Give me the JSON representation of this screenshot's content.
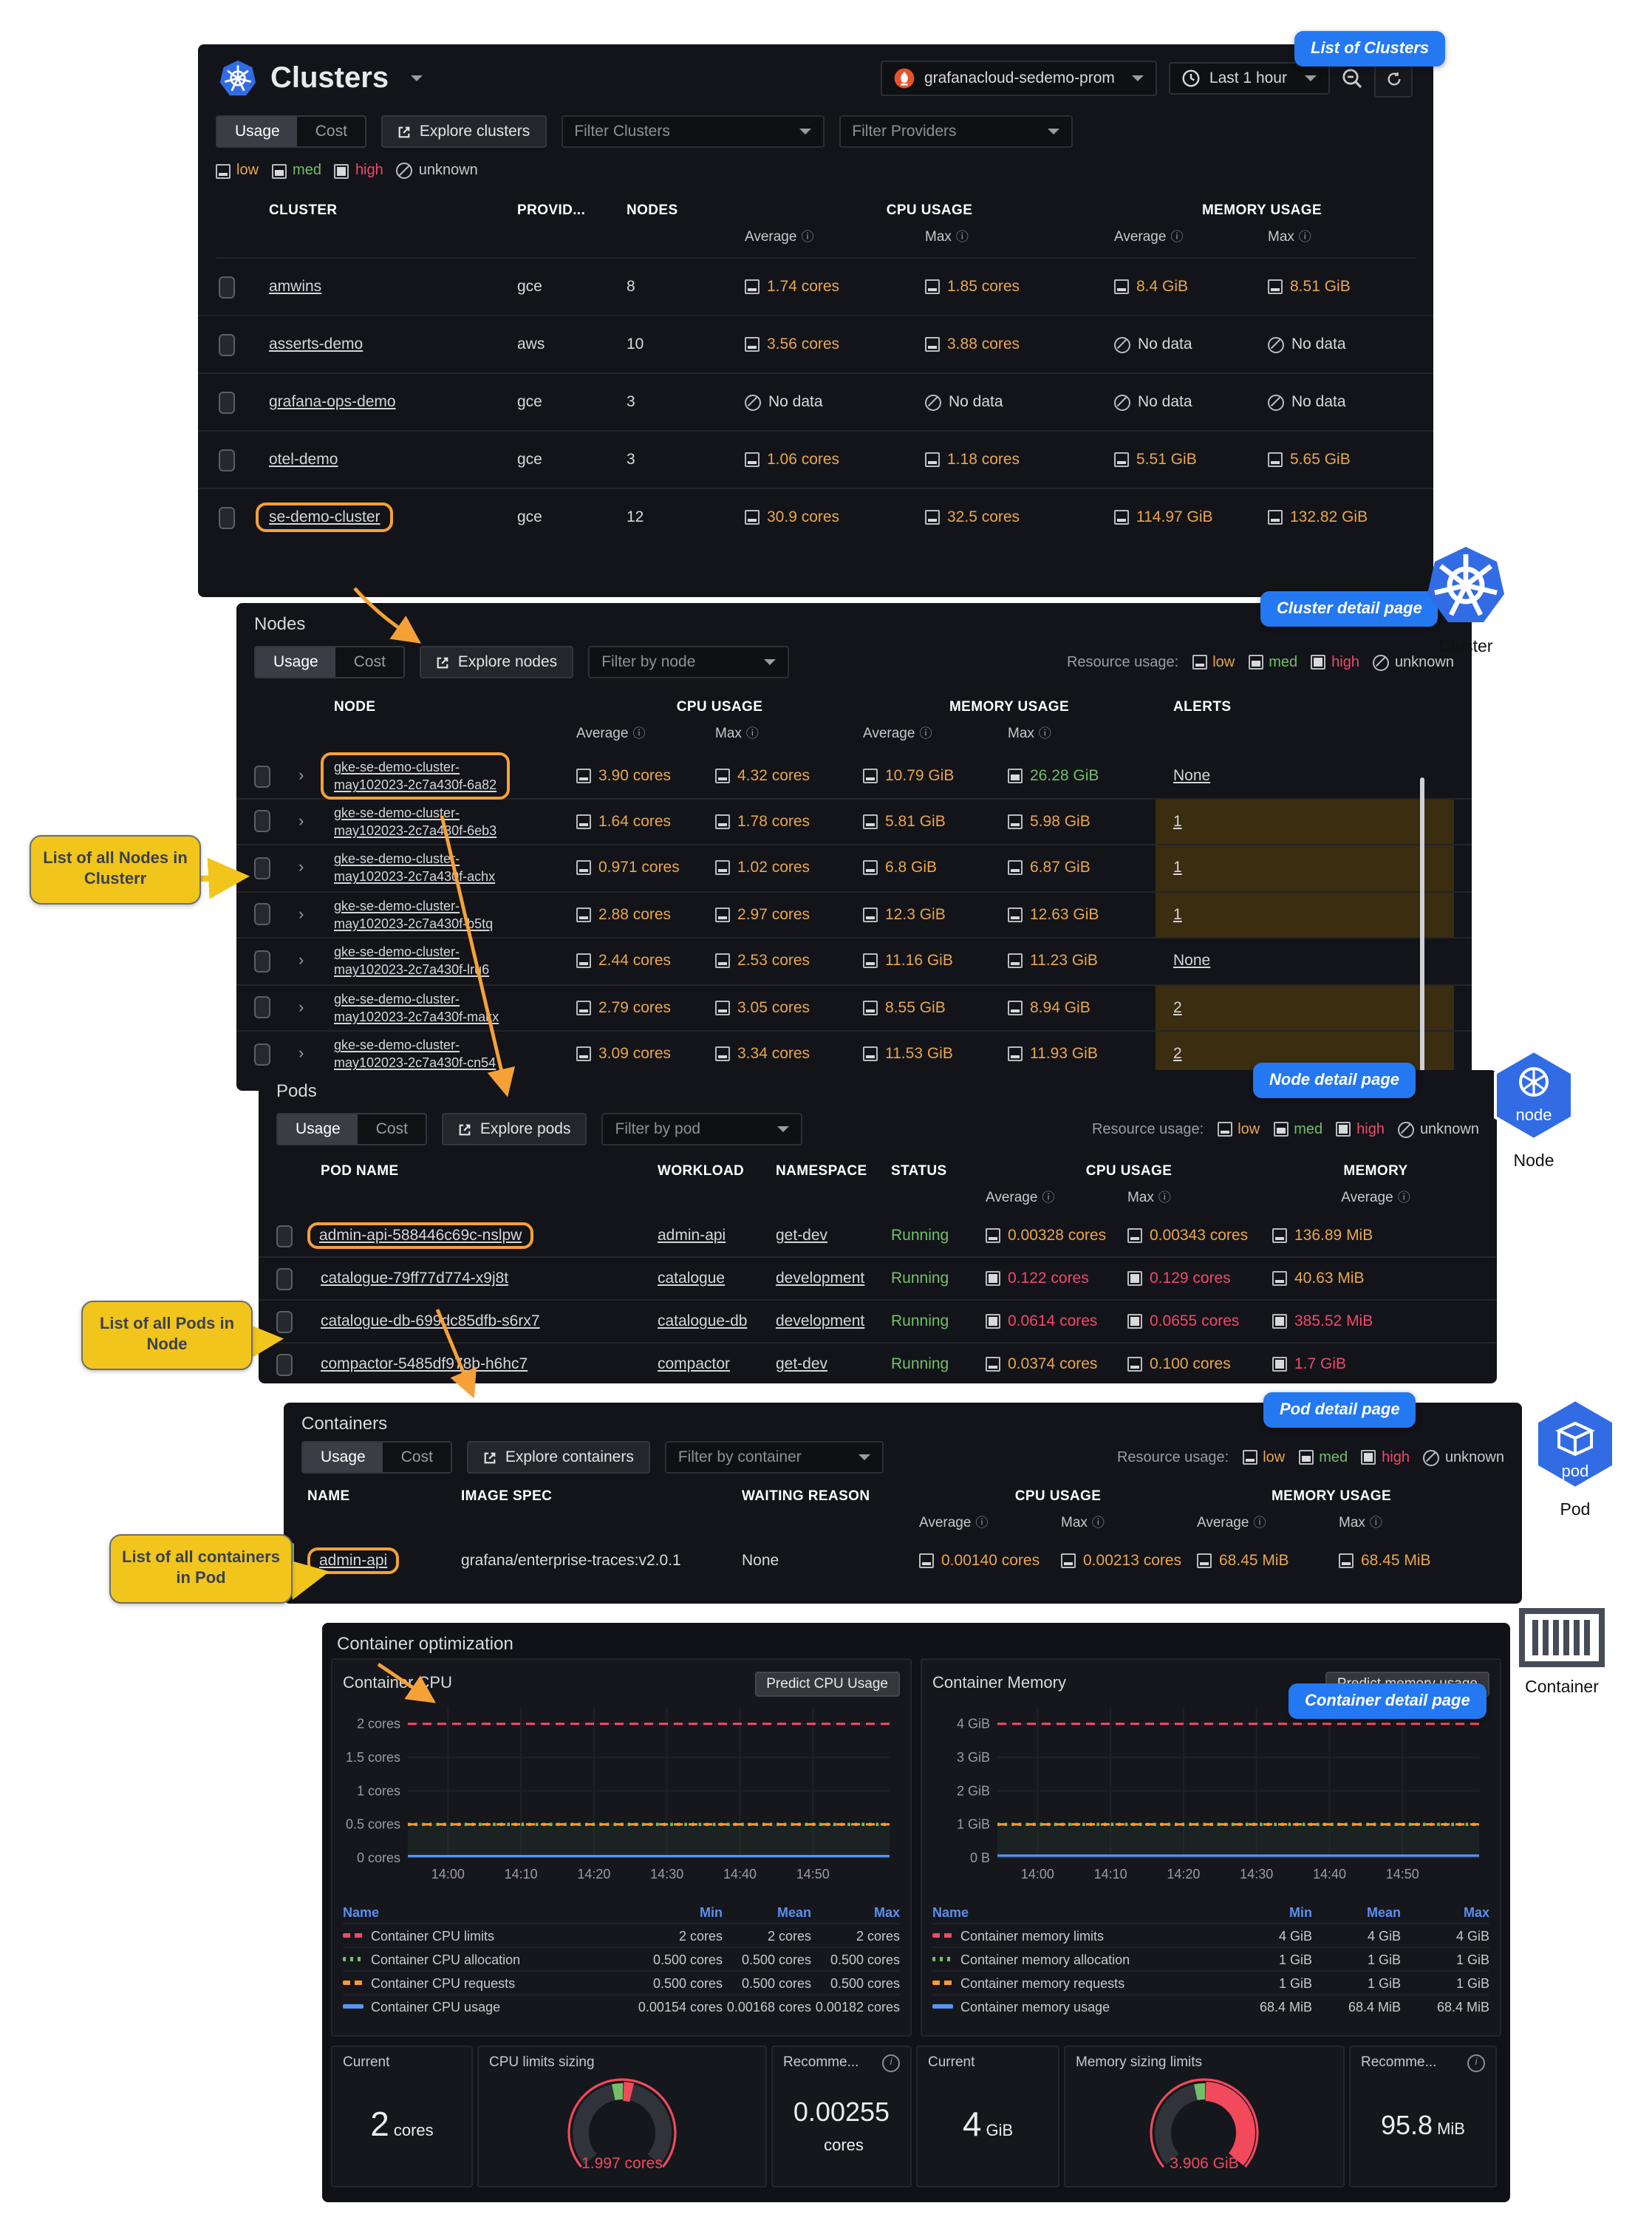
{
  "toolbar": {
    "usage": "Usage",
    "cost": "Cost"
  },
  "legend": {
    "resource_usage_label": "Resource usage:",
    "low": "low",
    "med": "med",
    "high": "high",
    "unknown": "unknown"
  },
  "header": {
    "title": "Clusters",
    "datasource": "grafanacloud-sedemo-prom",
    "time_range": "Last 1 hour"
  },
  "annotations": {
    "list_of_clusters": "List of Clusters",
    "cluster_detail": "Cluster detail page",
    "node_detail": "Node detail page",
    "pod_detail": "Pod detail page",
    "container_detail": "Container detail page",
    "nodes_box": "List of all Nodes in Clusterr",
    "pods_box": "List of all Pods in Node",
    "containers_box": "List of all containers in Pod",
    "cluster_icon_label": "Cluster",
    "node_icon_label": "Node",
    "pod_icon_label": "Pod",
    "container_icon_label": "Container",
    "node_icon_text": "node",
    "pod_icon_text": "pod"
  },
  "clusters_table": {
    "explore": "Explore clusters",
    "filter_clusters": "Filter Clusters",
    "filter_providers": "Filter Providers",
    "headers": {
      "cluster": "CLUSTER",
      "provider": "PROVID...",
      "nodes": "NODES",
      "cpu": "CPU USAGE",
      "memory": "MEMORY USAGE",
      "average": "Average",
      "max": "Max"
    },
    "rows": [
      {
        "name": "amwins",
        "provider": "gce",
        "nodes": "8",
        "highlight": false,
        "values": [
          {
            "t": "1.74 cores",
            "l": "low"
          },
          {
            "t": "1.85 cores",
            "l": "low"
          },
          {
            "t": "8.4 GiB",
            "l": "low"
          },
          {
            "t": "8.51 GiB",
            "l": "low"
          }
        ]
      },
      {
        "name": "asserts-demo",
        "provider": "aws",
        "nodes": "10",
        "highlight": false,
        "values": [
          {
            "t": "3.56 cores",
            "l": "low"
          },
          {
            "t": "3.88 cores",
            "l": "low"
          },
          {
            "t": "No data",
            "l": "unknown"
          },
          {
            "t": "No data",
            "l": "unknown"
          }
        ]
      },
      {
        "name": "grafana-ops-demo",
        "provider": "gce",
        "nodes": "3",
        "highlight": false,
        "values": [
          {
            "t": "No data",
            "l": "unknown"
          },
          {
            "t": "No data",
            "l": "unknown"
          },
          {
            "t": "No data",
            "l": "unknown"
          },
          {
            "t": "No data",
            "l": "unknown"
          }
        ]
      },
      {
        "name": "otel-demo",
        "provider": "gce",
        "nodes": "3",
        "highlight": false,
        "values": [
          {
            "t": "1.06 cores",
            "l": "low"
          },
          {
            "t": "1.18 cores",
            "l": "low"
          },
          {
            "t": "5.51 GiB",
            "l": "low"
          },
          {
            "t": "5.65 GiB",
            "l": "low"
          }
        ]
      },
      {
        "name": "se-demo-cluster",
        "provider": "gce",
        "nodes": "12",
        "highlight": true,
        "values": [
          {
            "t": "30.9 cores",
            "l": "low"
          },
          {
            "t": "32.5 cores",
            "l": "low"
          },
          {
            "t": "114.97 GiB",
            "l": "low"
          },
          {
            "t": "132.82 GiB",
            "l": "low"
          }
        ]
      }
    ]
  },
  "nodes_table": {
    "title": "Nodes",
    "explore": "Explore nodes",
    "filter": "Filter by node",
    "headers": {
      "node": "NODE",
      "cpu": "CPU USAGE",
      "memory": "MEMORY USAGE",
      "alerts": "ALERTS",
      "average": "Average",
      "max": "Max"
    },
    "rows": [
      {
        "line1": "gke-se-demo-cluster-",
        "line2": "may102023-2c7a430f-6a82",
        "highlight": true,
        "alerts": "None",
        "alert_bg": false,
        "values": [
          {
            "t": "3.90 cores",
            "l": "low"
          },
          {
            "t": "4.32 cores",
            "l": "low"
          },
          {
            "t": "10.79 GiB",
            "l": "low"
          },
          {
            "t": "26.28 GiB",
            "l": "med"
          }
        ]
      },
      {
        "line1": "gke-se-demo-cluster-",
        "line2": "may102023-2c7a430f-6eb3",
        "highlight": false,
        "alerts": "1",
        "alert_bg": true,
        "values": [
          {
            "t": "1.64 cores",
            "l": "low"
          },
          {
            "t": "1.78 cores",
            "l": "low"
          },
          {
            "t": "5.81 GiB",
            "l": "low"
          },
          {
            "t": "5.98 GiB",
            "l": "low"
          }
        ]
      },
      {
        "line1": "gke-se-demo-cluster-",
        "line2": "may102023-2c7a430f-achx",
        "highlight": false,
        "alerts": "1",
        "alert_bg": true,
        "values": [
          {
            "t": "0.971 cores",
            "l": "low"
          },
          {
            "t": "1.02 cores",
            "l": "low"
          },
          {
            "t": "6.8 GiB",
            "l": "low"
          },
          {
            "t": "6.87 GiB",
            "l": "low"
          }
        ]
      },
      {
        "line1": "gke-se-demo-cluster-",
        "line2": "may102023-2c7a430f-b5tq",
        "highlight": false,
        "alerts": "1",
        "alert_bg": true,
        "values": [
          {
            "t": "2.88 cores",
            "l": "low"
          },
          {
            "t": "2.97 cores",
            "l": "low"
          },
          {
            "t": "12.3 GiB",
            "l": "low"
          },
          {
            "t": "12.63 GiB",
            "l": "low"
          }
        ]
      },
      {
        "line1": "gke-se-demo-cluster-",
        "line2": "may102023-2c7a430f-lru6",
        "highlight": false,
        "alerts": "None",
        "alert_bg": false,
        "values": [
          {
            "t": "2.44 cores",
            "l": "low"
          },
          {
            "t": "2.53 cores",
            "l": "low"
          },
          {
            "t": "11.16 GiB",
            "l": "low"
          },
          {
            "t": "11.23 GiB",
            "l": "low"
          }
        ]
      },
      {
        "line1": "gke-se-demo-cluster-",
        "line2": "may102023-2c7a430f-makx",
        "highlight": false,
        "alerts": "2",
        "alert_bg": true,
        "values": [
          {
            "t": "2.79 cores",
            "l": "low"
          },
          {
            "t": "3.05 cores",
            "l": "low"
          },
          {
            "t": "8.55 GiB",
            "l": "low"
          },
          {
            "t": "8.94 GiB",
            "l": "low"
          }
        ]
      },
      {
        "line1": "gke-se-demo-cluster-",
        "line2": "may102023-2c7a430f-cn54",
        "highlight": false,
        "alerts": "2",
        "alert_bg": true,
        "values": [
          {
            "t": "3.09 cores",
            "l": "low"
          },
          {
            "t": "3.34 cores",
            "l": "low"
          },
          {
            "t": "11.53 GiB",
            "l": "low"
          },
          {
            "t": "11.93 GiB",
            "l": "low"
          }
        ]
      }
    ]
  },
  "pods_table": {
    "title": "Pods",
    "explore": "Explore pods",
    "filter": "Filter by pod",
    "headers": {
      "pod": "POD NAME",
      "workload": "WORKLOAD",
      "namespace": "NAMESPACE",
      "status": "STATUS",
      "cpu": "CPU USAGE",
      "memory": "MEMORY",
      "average": "Average",
      "max": "Max"
    },
    "rows": [
      {
        "name": "admin-api-588446c69c-nslpw",
        "workload": "admin-api",
        "namespace": "get-dev",
        "status": "Running",
        "highlight": true,
        "values": [
          {
            "t": "0.00328 cores",
            "l": "low"
          },
          {
            "t": "0.00343 cores",
            "l": "low"
          },
          {
            "t": "136.89 MiB",
            "l": "low"
          }
        ]
      },
      {
        "name": "catalogue-79ff77d774-x9j8t",
        "workload": "catalogue",
        "namespace": "development",
        "status": "Running",
        "highlight": false,
        "values": [
          {
            "t": "0.122 cores",
            "l": "high"
          },
          {
            "t": "0.129 cores",
            "l": "high"
          },
          {
            "t": "40.63 MiB",
            "l": "low"
          }
        ]
      },
      {
        "name": "catalogue-db-699dc85dfb-s6rx7",
        "workload": "catalogue-db",
        "namespace": "development",
        "status": "Running",
        "highlight": false,
        "values": [
          {
            "t": "0.0614 cores",
            "l": "high"
          },
          {
            "t": "0.0655 cores",
            "l": "high"
          },
          {
            "t": "385.52 MiB",
            "l": "high"
          }
        ]
      },
      {
        "name": "compactor-5485df978b-h6hc7",
        "workload": "compactor",
        "namespace": "get-dev",
        "status": "Running",
        "highlight": false,
        "values": [
          {
            "t": "0.0374 cores",
            "l": "low"
          },
          {
            "t": "0.100 cores",
            "l": "low"
          },
          {
            "t": "1.7 GiB",
            "l": "high"
          }
        ]
      }
    ]
  },
  "containers_table": {
    "title": "Containers",
    "explore": "Explore containers",
    "filter": "Filter by container",
    "headers": {
      "name": "NAME",
      "image": "IMAGE SPEC",
      "waiting": "WAITING REASON",
      "cpu": "CPU USAGE",
      "memory": "MEMORY USAGE",
      "average": "Average",
      "max": "Max"
    },
    "rows": [
      {
        "name": "admin-api",
        "image": "grafana/enterprise-traces:v2.0.1",
        "waiting": "None",
        "highlight": true,
        "values": [
          {
            "t": "0.00140 cores",
            "l": "low"
          },
          {
            "t": "0.00213 cores",
            "l": "low"
          },
          {
            "t": "68.45 MiB",
            "l": "low"
          },
          {
            "t": "68.45 MiB",
            "l": "low"
          }
        ]
      }
    ]
  },
  "optimization": {
    "title": "Container optimization",
    "stats": [
      {
        "title": "Current",
        "value": "2",
        "unit": "cores",
        "layout": "inline",
        "big": true,
        "info": false
      },
      {
        "title": "CPU limits sizing",
        "gauge": {
          "label": "1.997 cores",
          "fill": 0.09
        },
        "info": false
      },
      {
        "title": "Recomme...",
        "value": "0.00255",
        "unit": "cores",
        "layout": "stacked",
        "big": false,
        "info": true
      },
      {
        "title": "Current",
        "value": "4",
        "unit": "GiB",
        "layout": "inline",
        "big": true,
        "info": false
      },
      {
        "title": "Memory sizing limits",
        "gauge": {
          "label": "3.906 GiB",
          "fill": 1.0
        },
        "info": false
      },
      {
        "title": "Recomme...",
        "value": "95.8",
        "unit": "MiB",
        "layout": "inline",
        "big": false,
        "info": true
      }
    ]
  },
  "chart_data": [
    {
      "type": "line",
      "title": "Container CPU",
      "button": "Predict CPU Usage",
      "x": [
        "14:00",
        "14:10",
        "14:20",
        "14:30",
        "14:40",
        "14:50"
      ],
      "y_ticks": [
        {
          "label": "2 cores",
          "v": 2
        },
        {
          "label": "1.5 cores",
          "v": 1.5
        },
        {
          "label": "1 cores",
          "v": 1
        },
        {
          "label": "0.5 cores",
          "v": 0.5
        },
        {
          "label": "0 cores",
          "v": 0
        }
      ],
      "ymax": 2.25,
      "grid": true,
      "legend_position": "bottom-table",
      "legend_cols": [
        "Name",
        "Min",
        "Mean",
        "Max"
      ],
      "series": [
        {
          "name": "Container CPU limits",
          "color": "#f2495c",
          "style": "dashed",
          "y": 2,
          "fill_below": false,
          "min": "2 cores",
          "mean": "2 cores",
          "max": "2 cores"
        },
        {
          "name": "Container CPU allocation",
          "color": "#73bf69",
          "style": "dotted",
          "y": 0.5,
          "fill_below": true,
          "min": "0.500 cores",
          "mean": "0.500 cores",
          "max": "0.500 cores"
        },
        {
          "name": "Container CPU requests",
          "color": "#ff9830",
          "style": "dashed",
          "y": 0.5,
          "fill_below": false,
          "min": "0.500 cores",
          "mean": "0.500 cores",
          "max": "0.500 cores"
        },
        {
          "name": "Container CPU usage",
          "color": "#5794f2",
          "style": "solid",
          "y": 0.0017,
          "fill_below": false,
          "min": "0.00154 cores",
          "mean": "0.00168 cores",
          "max": "0.00182 cores"
        }
      ]
    },
    {
      "type": "line",
      "title": "Container Memory",
      "button": "Predict memory usage",
      "x": [
        "14:00",
        "14:10",
        "14:20",
        "14:30",
        "14:40",
        "14:50"
      ],
      "y_ticks": [
        {
          "label": "4 GiB",
          "v": 4
        },
        {
          "label": "3 GiB",
          "v": 3
        },
        {
          "label": "2 GiB",
          "v": 2
        },
        {
          "label": "1 GiB",
          "v": 1
        },
        {
          "label": "0 B",
          "v": 0
        }
      ],
      "ymax": 4.5,
      "grid": true,
      "legend_position": "bottom-table",
      "legend_cols": [
        "Name",
        "Min",
        "Mean",
        "Max"
      ],
      "series": [
        {
          "name": "Container memory limits",
          "color": "#f2495c",
          "style": "dashed",
          "y": 4,
          "fill_below": false,
          "min": "4 GiB",
          "mean": "4 GiB",
          "max": "4 GiB"
        },
        {
          "name": "Container memory allocation",
          "color": "#73bf69",
          "style": "dotted",
          "y": 1,
          "fill_below": true,
          "min": "1 GiB",
          "mean": "1 GiB",
          "max": "1 GiB"
        },
        {
          "name": "Container memory requests",
          "color": "#ff9830",
          "style": "dashed",
          "y": 1,
          "fill_below": false,
          "min": "1 GiB",
          "mean": "1 GiB",
          "max": "1 GiB"
        },
        {
          "name": "Container memory usage",
          "color": "#5794f2",
          "style": "solid",
          "y": 0.0668,
          "fill_below": false,
          "min": "68.4 MiB",
          "mean": "68.4 MiB",
          "max": "68.4 MiB"
        }
      ]
    }
  ]
}
